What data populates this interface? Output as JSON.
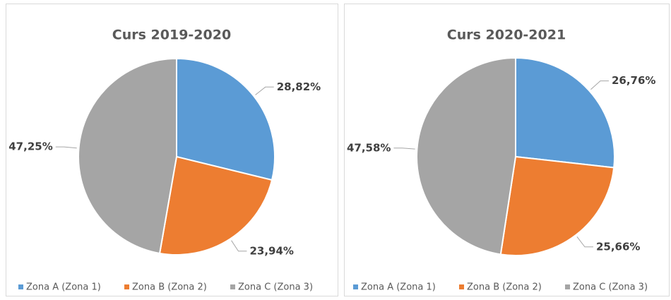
{
  "chart_data": [
    {
      "type": "pie",
      "title": "Curs 2019-2020",
      "categories": [
        "Zona A (Zona 1)",
        "Zona B (Zona 2)",
        "Zona C (Zona 3)"
      ],
      "values": [
        28.82,
        23.94,
        47.25
      ],
      "value_labels": [
        "28,82%",
        "23,94%",
        "47,25%"
      ],
      "colors": [
        "#5b9bd5",
        "#ed7d31",
        "#a5a5a5"
      ],
      "legend": "bottom"
    },
    {
      "type": "pie",
      "title": "Curs 2020-2021",
      "categories": [
        "Zona A (Zona 1)",
        "Zona B (Zona 2)",
        "Zona C (Zona 3)"
      ],
      "values": [
        26.76,
        25.66,
        47.58
      ],
      "value_labels": [
        "26,76%",
        "25,66%",
        "47,58%"
      ],
      "colors": [
        "#5b9bd5",
        "#ed7d31",
        "#a5a5a5"
      ],
      "legend": "bottom"
    }
  ]
}
